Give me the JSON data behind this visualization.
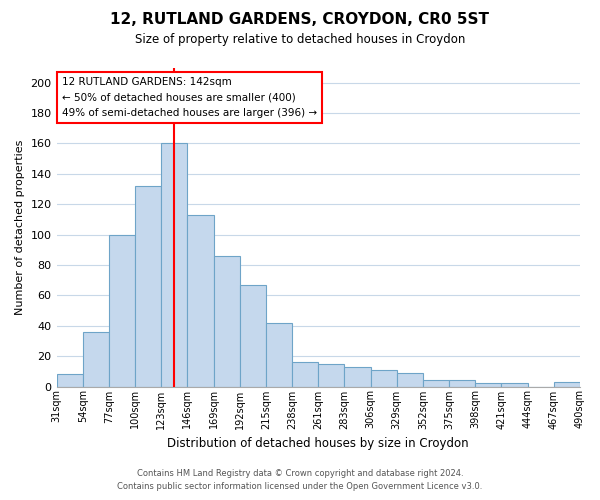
{
  "title": "12, RUTLAND GARDENS, CROYDON, CR0 5ST",
  "subtitle": "Size of property relative to detached houses in Croydon",
  "xlabel": "Distribution of detached houses by size in Croydon",
  "ylabel": "Number of detached properties",
  "categories": [
    "31sqm",
    "54sqm",
    "77sqm",
    "100sqm",
    "123sqm",
    "146sqm",
    "169sqm",
    "192sqm",
    "215sqm",
    "238sqm",
    "261sqm",
    "283sqm",
    "306sqm",
    "329sqm",
    "352sqm",
    "375sqm",
    "398sqm",
    "421sqm",
    "444sqm",
    "467sqm",
    "490sqm"
  ],
  "values": [
    8,
    36,
    100,
    132,
    160,
    113,
    86,
    67,
    42,
    16,
    15,
    13,
    11,
    9,
    4,
    4,
    2,
    2,
    0,
    3
  ],
  "bar_color": "#c5d8ed",
  "bar_edge_color": "#6ea4c8",
  "vline_color": "red",
  "vline_pos": 4.5,
  "ylim": [
    0,
    210
  ],
  "yticks": [
    0,
    20,
    40,
    60,
    80,
    100,
    120,
    140,
    160,
    180,
    200
  ],
  "annotation_title": "12 RUTLAND GARDENS: 142sqm",
  "annotation_line1": "← 50% of detached houses are smaller (400)",
  "annotation_line2": "49% of semi-detached houses are larger (396) →",
  "annotation_box_color": "#ffffff",
  "annotation_box_edge": "red",
  "footer_line1": "Contains HM Land Registry data © Crown copyright and database right 2024.",
  "footer_line2": "Contains public sector information licensed under the Open Government Licence v3.0.",
  "bg_color": "#ffffff",
  "grid_color": "#c8d8e8"
}
